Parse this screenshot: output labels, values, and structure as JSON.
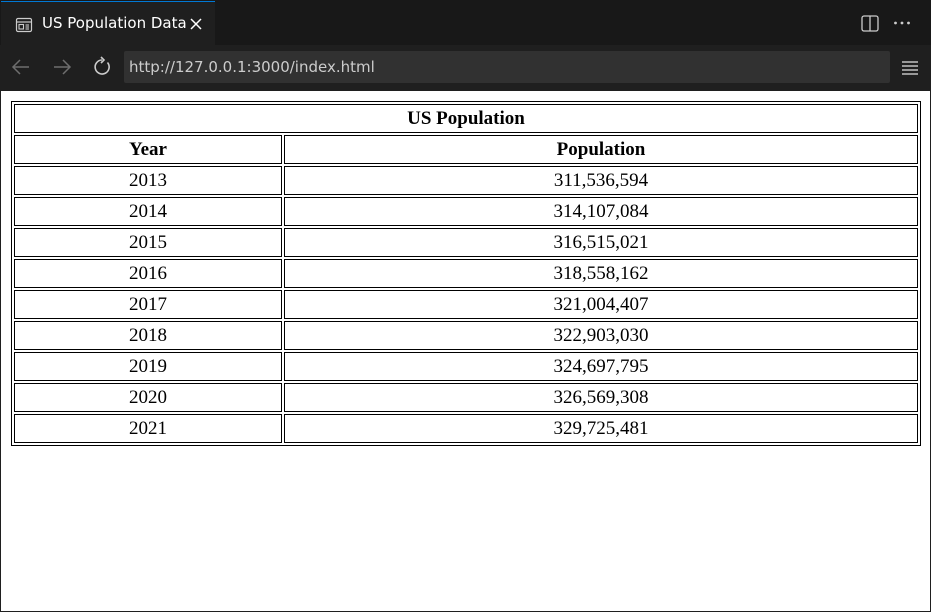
{
  "tab": {
    "title": "US Population Data",
    "icon": "preview-icon"
  },
  "nav": {
    "url": "http://127.0.0.1:3000/index.html"
  },
  "table": {
    "caption": "US Population",
    "headers": [
      "Year",
      "Population"
    ],
    "rows": [
      [
        "2013",
        "311,536,594"
      ],
      [
        "2014",
        "314,107,084"
      ],
      [
        "2015",
        "316,515,021"
      ],
      [
        "2016",
        "318,558,162"
      ],
      [
        "2017",
        "321,004,407"
      ],
      [
        "2018",
        "322,903,030"
      ],
      [
        "2019",
        "324,697,795"
      ],
      [
        "2020",
        "326,569,308"
      ],
      [
        "2021",
        "329,725,481"
      ]
    ]
  },
  "colors": {
    "accent": "#0078d4",
    "chrome": "#1f1f1f",
    "url_bg": "#313131"
  }
}
